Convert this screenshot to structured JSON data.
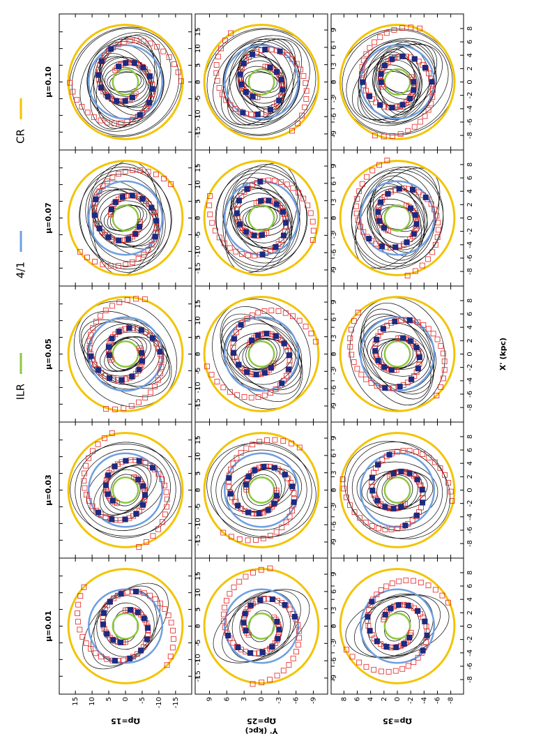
{
  "legend": [
    {
      "label": "ILR",
      "color": "#8dc63f"
    },
    {
      "label": "4/1",
      "color": "#6f9fe0"
    },
    {
      "label": "CR",
      "color": "#f2c400"
    }
  ],
  "columns": [
    "μ=0.01",
    "μ=0.03",
    "μ=0.05",
    "μ=0.07",
    "μ=0.10"
  ],
  "rows": [
    {
      "label": "Ωp=15",
      "ticks": [
        "-15",
        "-10",
        "-5",
        "0",
        "5",
        "10",
        "15"
      ],
      "range": 19
    },
    {
      "label": "Ωp=25",
      "ticks": [
        "-9",
        "-6",
        "-3",
        "0",
        "3",
        "6",
        "9"
      ],
      "range": 11
    },
    {
      "label": "Ωp=35",
      "ticks": [
        "-8",
        "-6",
        "-4",
        "-2",
        "0",
        "2",
        "4",
        "6",
        "8"
      ],
      "range": 9.5
    }
  ],
  "x_label": "X' (kpc)",
  "y_label": "Y' (kpc)"
}
